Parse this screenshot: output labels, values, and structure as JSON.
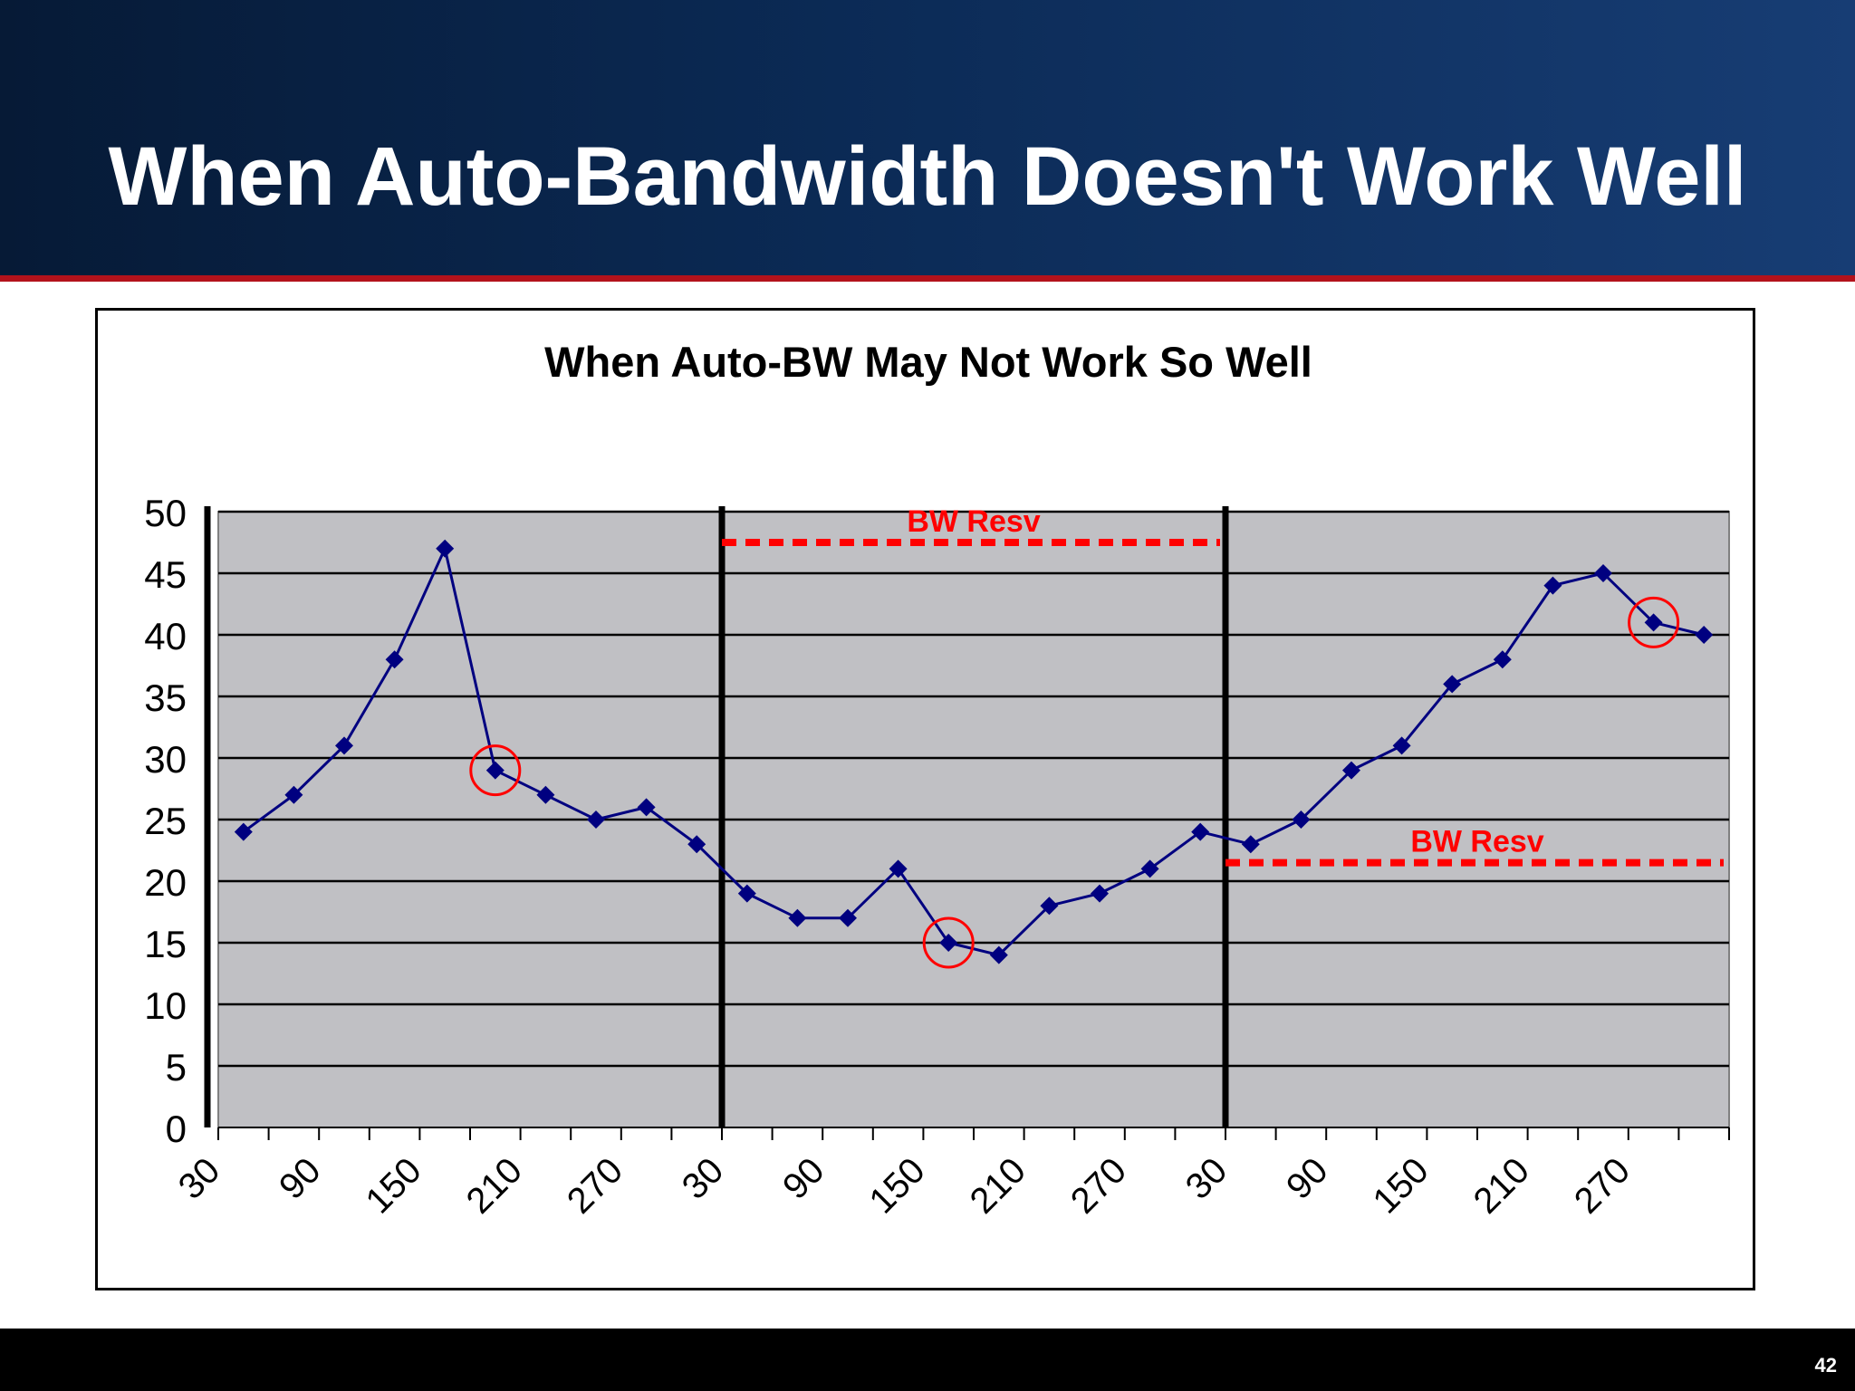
{
  "slide": {
    "title": "When Auto-Bandwidth Doesn't Work Well",
    "page_number": "42"
  },
  "colors": {
    "header_dark": "#061a36",
    "header_light": "#173d74",
    "accent_rule": "#b3121b",
    "plot_background": "#c0c0c4",
    "series": "#000080",
    "annotation": "#ff0000"
  },
  "chart_data": {
    "type": "line",
    "title": "When Auto-BW May Not Work So Well",
    "xlabel": "",
    "ylabel": "",
    "ylim": [
      0,
      50
    ],
    "y_ticks": [
      0,
      5,
      10,
      15,
      20,
      25,
      30,
      35,
      40,
      45,
      50
    ],
    "grid": true,
    "legend": "none",
    "x_tick_labels": [
      "30",
      "90",
      "150",
      "210",
      "270",
      "30",
      "90",
      "150",
      "210",
      "270",
      "30",
      "90",
      "150",
      "210",
      "270"
    ],
    "series": [
      {
        "marker": "diamond",
        "values": [
          24,
          27,
          31,
          38,
          47,
          29,
          27,
          25,
          26,
          23,
          19,
          17,
          17,
          21,
          15,
          14,
          18,
          19,
          21,
          24,
          23,
          25,
          29,
          31,
          36,
          38,
          44,
          45,
          41,
          40
        ]
      }
    ],
    "period_dividers_after_point": [
      10,
      20
    ],
    "highlighted_points": [
      5,
      14,
      28
    ],
    "reservation_lines": [
      {
        "label": "BW Resv",
        "value": 47.5,
        "from_point": 10,
        "to_point": 20
      },
      {
        "label": "BW Resv",
        "value": 21.5,
        "from_point": 20,
        "to_point": 30
      }
    ]
  }
}
